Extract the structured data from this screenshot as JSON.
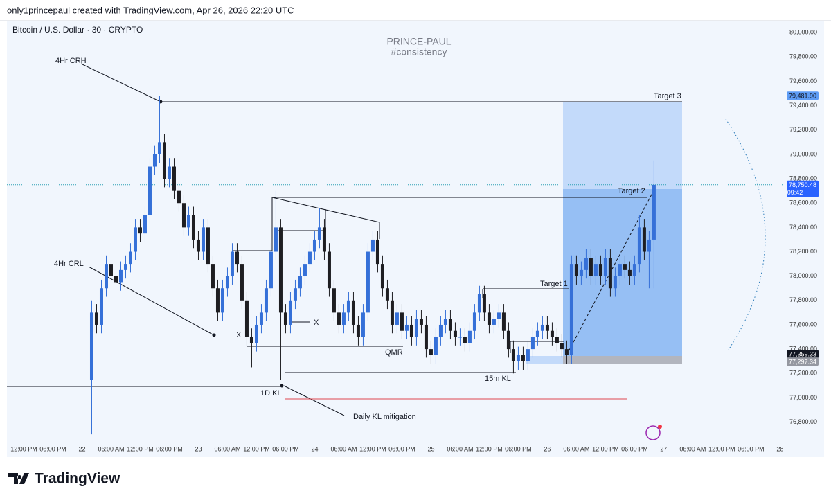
{
  "header": {
    "byline": "only1princepaul created with TradingView.com, Apr 26, 2026 22:20 UTC",
    "logo": "TradingView"
  },
  "chart_data": {
    "type": "candlestick",
    "title": "Bitcoin / U.S. Dollar · 30 · CRYPTO",
    "watermark": [
      "PRINCE-PAUL",
      "#consistency"
    ],
    "up_color": "#3570d8",
    "down_color": "#1e1e22",
    "x": [
      2,
      3,
      4,
      5,
      6,
      7,
      8,
      9,
      10,
      11,
      12,
      13,
      14,
      15,
      16,
      17,
      18,
      19,
      20,
      21,
      22,
      23,
      24,
      25,
      26,
      27,
      28,
      29,
      30,
      31,
      32,
      33,
      34,
      35,
      36,
      37,
      38,
      39,
      40,
      41,
      42,
      43,
      44,
      45,
      46,
      47,
      48,
      49,
      50,
      51,
      52,
      53,
      54,
      55,
      56,
      57,
      58,
      59,
      60,
      61,
      62,
      63,
      64,
      65,
      66,
      67,
      68,
      69,
      70,
      71,
      72,
      73,
      74,
      75,
      76,
      77,
      78,
      79,
      80,
      81,
      82,
      83,
      84,
      85,
      86,
      87,
      88,
      89,
      90,
      91,
      92,
      93,
      94,
      95,
      96,
      97,
      98,
      99,
      100,
      101,
      102,
      103,
      104,
      105,
      106,
      107,
      108,
      109,
      110,
      111,
      112,
      113,
      114,
      115,
      116,
      117,
      118
    ],
    "open": [
      77150,
      77700,
      77600,
      77900,
      78100,
      78000,
      77950,
      78050,
      78100,
      78200,
      78400,
      78350,
      78500,
      78900,
      79000,
      79100,
      78800,
      78900,
      78700,
      78600,
      78400,
      78500,
      78300,
      78200,
      78400,
      78100,
      77900,
      77700,
      77900,
      78000,
      78200,
      78100,
      77800,
      77500,
      77450,
      77600,
      77700,
      77900,
      78200,
      78400,
      77700,
      77600,
      77800,
      77900,
      78000,
      78100,
      78200,
      78300,
      78400,
      78200,
      77900,
      77700,
      77600,
      77700,
      77800,
      77600,
      77500,
      77700,
      78200,
      78300,
      78100,
      77900,
      77800,
      77600,
      77700,
      77550,
      77600,
      77500,
      77650,
      77600,
      77400,
      77350,
      77500,
      77600,
      77650,
      77550,
      77500,
      77500,
      77450,
      77550,
      77700,
      77850,
      77700,
      77600,
      77650,
      77700,
      77550,
      77400,
      77300,
      77350,
      77300,
      77400,
      77500,
      77550,
      77600,
      77550,
      77500,
      77450,
      77400,
      77350,
      78100,
      78000,
      78050,
      78150,
      78000,
      78100,
      78000,
      78150,
      77900,
      78000,
      78100,
      78050,
      78000,
      78100,
      78400,
      78200,
      78300
    ],
    "high": [
      77800,
      77770,
      77970,
      78170,
      78170,
      78070,
      78120,
      78170,
      78270,
      78470,
      78470,
      78570,
      78970,
      79070,
      79481.9,
      79170,
      78970,
      78970,
      78770,
      78670,
      78570,
      78570,
      78370,
      78470,
      78470,
      78170,
      77970,
      77970,
      78070,
      78270,
      78270,
      78170,
      77870,
      77570,
      77670,
      77770,
      77970,
      78270,
      78700,
      78470,
      77770,
      77870,
      77970,
      78070,
      78170,
      78270,
      78370,
      78560,
      78470,
      78270,
      77970,
      77770,
      77770,
      77870,
      77870,
      77670,
      77770,
      78270,
      78370,
      78370,
      78170,
      77970,
      77870,
      77770,
      77770,
      77670,
      77670,
      77720,
      77720,
      77670,
      77470,
      77570,
      77670,
      77720,
      77720,
      77620,
      77570,
      77570,
      77620,
      77770,
      77920,
      77920,
      77770,
      77720,
      77770,
      77770,
      77620,
      77470,
      77420,
      77420,
      77470,
      77570,
      77620,
      77670,
      77670,
      77620,
      77570,
      77520,
      77470,
      78170,
      78170,
      78120,
      78220,
      78220,
      78170,
      78170,
      78220,
      78220,
      78070,
      78170,
      78170,
      78120,
      78170,
      78500,
      78470,
      78370,
      78950
    ],
    "low": [
      76700,
      77530,
      77530,
      77830,
      77930,
      77880,
      77880,
      77980,
      78030,
      78130,
      78280,
      78280,
      78430,
      78830,
      78930,
      78730,
      78730,
      78630,
      78530,
      78330,
      78330,
      78230,
      78130,
      78130,
      78030,
      77830,
      77630,
      77630,
      77830,
      77930,
      78030,
      77730,
      77430,
      77250,
      77380,
      77530,
      77630,
      77830,
      78130,
      77150,
      77530,
      77530,
      77730,
      77830,
      77930,
      78030,
      78130,
      78230,
      78130,
      77830,
      77630,
      77530,
      77530,
      77630,
      77530,
      77430,
      77430,
      77630,
      78130,
      78030,
      77830,
      77730,
      77530,
      77530,
      77480,
      77480,
      77430,
      77430,
      77530,
      77330,
      77280,
      77280,
      77430,
      77530,
      77480,
      77430,
      77430,
      77380,
      77380,
      77480,
      77630,
      77630,
      77530,
      77530,
      77580,
      77480,
      77330,
      77200,
      77230,
      77230,
      77230,
      77330,
      77430,
      77480,
      77480,
      77430,
      77380,
      77330,
      77280,
      77280,
      77930,
      77930,
      77980,
      77930,
      77930,
      77930,
      77930,
      77830,
      77830,
      77930,
      77980,
      77930,
      77930,
      78030,
      78130,
      77900,
      77900
    ],
    "close": [
      77700,
      77600,
      77900,
      78100,
      78000,
      77950,
      78050,
      78100,
      78200,
      78400,
      78350,
      78500,
      78900,
      79000,
      79100,
      78800,
      78900,
      78700,
      78600,
      78400,
      78500,
      78300,
      78200,
      78400,
      78100,
      77900,
      77700,
      77900,
      78000,
      78200,
      78100,
      77800,
      77500,
      77450,
      77600,
      77700,
      77900,
      78200,
      78400,
      77700,
      77600,
      77800,
      77900,
      78000,
      78100,
      78200,
      78300,
      78400,
      78200,
      77900,
      77700,
      77600,
      77700,
      77800,
      77600,
      77500,
      77700,
      78200,
      78300,
      78100,
      77900,
      77800,
      77600,
      77700,
      77550,
      77600,
      77500,
      77650,
      77600,
      77400,
      77350,
      77500,
      77600,
      77650,
      77550,
      77500,
      77500,
      77450,
      77550,
      77700,
      77850,
      77700,
      77600,
      77650,
      77700,
      77550,
      77400,
      77300,
      77350,
      77300,
      77400,
      77500,
      77550,
      77600,
      77550,
      77500,
      77450,
      77400,
      77350,
      78100,
      78000,
      78050,
      78150,
      78000,
      78100,
      78000,
      78150,
      77900,
      78000,
      78100,
      78050,
      78000,
      78100,
      78400,
      78200,
      78300,
      78750
    ],
    "xlim": [
      -15.5,
      144.8
    ],
    "ylim": [
      76638,
      80098
    ],
    "xticks": [
      {
        "value": -12,
        "label": "12:00 PM"
      },
      {
        "value": -6,
        "label": "06:00 PM"
      },
      {
        "value": 0,
        "label": "22"
      },
      {
        "value": 6,
        "label": "06:00 AM"
      },
      {
        "value": 12,
        "label": "12:00 PM"
      },
      {
        "value": 18,
        "label": "06:00 PM"
      },
      {
        "value": 24,
        "label": "23"
      },
      {
        "value": 30,
        "label": "06:00 AM"
      },
      {
        "value": 36,
        "label": "12:00 PM"
      },
      {
        "value": 42,
        "label": "06:00 PM"
      },
      {
        "value": 48,
        "label": "24"
      },
      {
        "value": 54,
        "label": "06:00 AM"
      },
      {
        "value": 60,
        "label": "12:00 PM"
      },
      {
        "value": 66,
        "label": "06:00 PM"
      },
      {
        "value": 72,
        "label": "25"
      },
      {
        "value": 78,
        "label": "06:00 AM"
      },
      {
        "value": 84,
        "label": "12:00 PM"
      },
      {
        "value": 90,
        "label": "06:00 PM"
      },
      {
        "value": 96,
        "label": "26"
      },
      {
        "value": 102,
        "label": "06:00 AM"
      },
      {
        "value": 108,
        "label": "12:00 PM"
      },
      {
        "value": 114,
        "label": "06:00 PM"
      },
      {
        "value": 120,
        "label": "27"
      },
      {
        "value": 126,
        "label": "06:00 AM"
      },
      {
        "value": 132,
        "label": "12:00 PM"
      },
      {
        "value": 138,
        "label": "06:00 PM"
      },
      {
        "value": 144,
        "label": "28"
      }
    ],
    "yticks": [
      {
        "value": 76800,
        "label": "76,800.00"
      },
      {
        "value": 77000,
        "label": "77,000.00"
      },
      {
        "value": 77200,
        "label": "77,200.00"
      },
      {
        "value": 77400,
        "label": "77,400.00"
      },
      {
        "value": 77600,
        "label": "77,600.00"
      },
      {
        "value": 77800,
        "label": "77,800.00"
      },
      {
        "value": 78000,
        "label": "78,000.00"
      },
      {
        "value": 78200,
        "label": "78,200.00"
      },
      {
        "value": 78400,
        "label": "78,400.00"
      },
      {
        "value": 78600,
        "label": "78,600.00"
      },
      {
        "value": 78800,
        "label": "78,800.00"
      },
      {
        "value": 79000,
        "label": "79,000.00"
      },
      {
        "value": 79200,
        "label": "79,200.00"
      },
      {
        "value": 79400,
        "label": "79,400.00"
      },
      {
        "value": 79600,
        "label": "79,600.00"
      },
      {
        "value": 79800,
        "label": "79,800.00"
      },
      {
        "value": 80000,
        "label": "80,000.00"
      }
    ],
    "grid": false,
    "price_tags": [
      {
        "value": 79481.9,
        "label": "79,481.90",
        "color": "#5d9cf5"
      },
      {
        "value": 78750.48,
        "label": "78,750.48",
        "color": "#2962ff"
      },
      {
        "value": 77359.33,
        "label": "77,359.33",
        "color": "#131722"
      },
      {
        "value": 77297.34,
        "label": "77,297.34",
        "color": "#9598a1"
      }
    ],
    "countdown": "09:42",
    "annotations": [
      "4Hr CRH",
      "4Hr CRL",
      "X",
      "X",
      "QMR",
      "1D KL",
      "15m KL",
      "Daily KL mitigation",
      "Target 1",
      "Target 2",
      "Target 3"
    ]
  }
}
